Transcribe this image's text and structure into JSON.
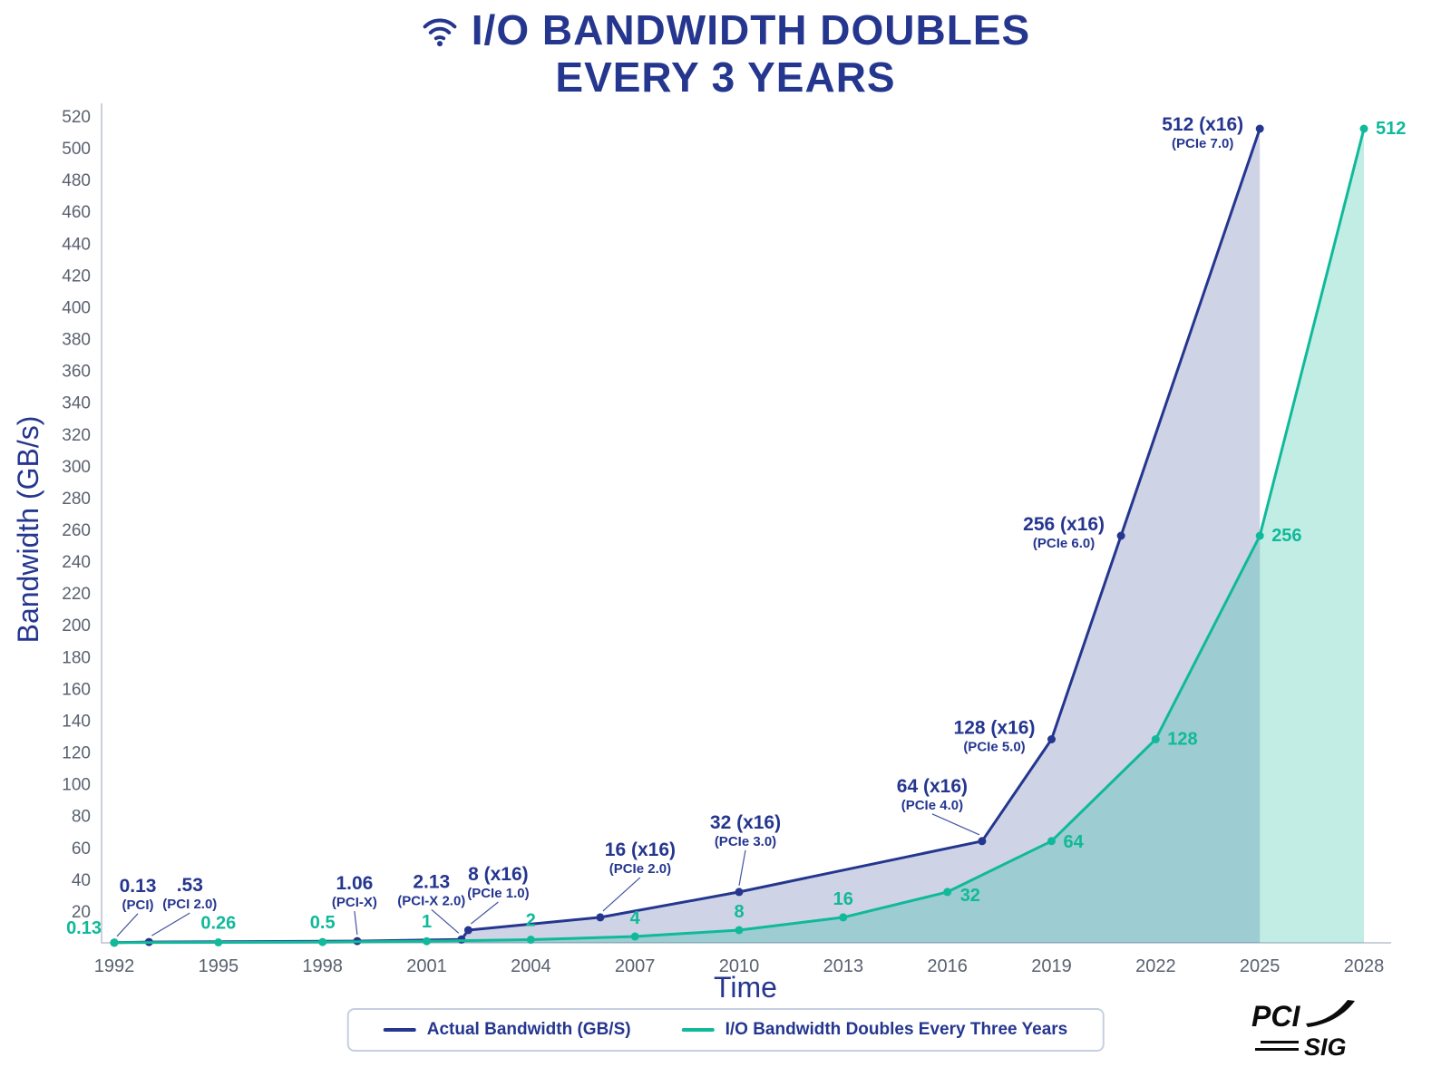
{
  "theme": {
    "navy": "#25368f",
    "teal": "#10b99a",
    "axis_line": "#cbd0da",
    "tick_text": "#5a6170",
    "background": "#ffffff",
    "navy_fill_opacity": 0.22,
    "teal_fill_opacity": 0.26
  },
  "title": {
    "line1": "I/O BANDWIDTH DOUBLES",
    "line2": "EVERY 3 YEARS"
  },
  "chart_data": {
    "type": "line",
    "title": "I/O BANDWIDTH DOUBLES EVERY 3 YEARS",
    "xlabel": "Time",
    "ylabel": "Bandwidth (GB/s)",
    "xlim": [
      1992,
      2028
    ],
    "ylim": [
      0,
      520
    ],
    "y_tick_step": 20,
    "x_ticks": [
      "1992",
      "1995",
      "1998",
      "2001",
      "2004",
      "2007",
      "2010",
      "2013",
      "2016",
      "2019",
      "2022",
      "2025",
      "2028"
    ],
    "grid": false,
    "legend_position": "bottom-center",
    "series": [
      {
        "name": "Actual Bandwidth (GB/S)",
        "color": "#25368f",
        "area": true,
        "points": [
          {
            "x": 1992,
            "y": 0.13,
            "label": "0.13",
            "sublabel": "(PCI)",
            "dx": 26,
            "dy": -56,
            "leader": true
          },
          {
            "x": 1993,
            "y": 0.53,
            "label": ".53",
            "sublabel": "(PCI 2.0)",
            "dx": 45,
            "dy": -56,
            "leader": true
          },
          {
            "x": 1999,
            "y": 1.06,
            "label": "1.06",
            "sublabel": "(PCI-X)",
            "dx": -3,
            "dy": -57,
            "leader": true
          },
          {
            "x": 2002,
            "y": 2.13,
            "label": "2.13",
            "sublabel": "(PCI-X 2.0)",
            "dx": -33,
            "dy": -57,
            "leader": true
          },
          {
            "x": 2002.2,
            "y": 8,
            "label": "8 (x16)",
            "sublabel": "(PCIe 1.0)",
            "dx": 33,
            "dy": -55,
            "leader": true
          },
          {
            "x": 2006,
            "y": 16,
            "label": "16 (x16)",
            "sublabel": "(PCIe 2.0)",
            "dx": 44,
            "dy": -68,
            "leader": true
          },
          {
            "x": 2010,
            "y": 32,
            "label": "32 (x16)",
            "sublabel": "(PCIe 3.0)",
            "dx": 7,
            "dy": -70,
            "leader": true
          },
          {
            "x": 2017,
            "y": 64,
            "label": "64 (x16)",
            "sublabel": "(PCIe 4.0)",
            "dx": -55,
            "dy": -54,
            "leader": true
          },
          {
            "x": 2019,
            "y": 128,
            "label": "128 (x16)",
            "sublabel": "(PCIe 5.0)",
            "dx": -63,
            "dy": -6,
            "leader": false
          },
          {
            "x": 2021,
            "y": 256,
            "label": "256 (x16)",
            "sublabel": "(PCIe 6.0)",
            "dx": -63,
            "dy": -6,
            "leader": false
          },
          {
            "x": 2025,
            "y": 512,
            "label": "512 (x16)",
            "sublabel": "(PCIe 7.0)",
            "dx": -63,
            "dy": 2,
            "leader": false
          }
        ]
      },
      {
        "name": "I/O Bandwidth Doubles Every Three Years",
        "color": "#10b99a",
        "area": true,
        "points": [
          {
            "x": 1992,
            "y": 0.13,
            "label": "0.13",
            "dx": -14,
            "dy": -10,
            "anchor": "end"
          },
          {
            "x": 1995,
            "y": 0.26,
            "label": "0.26",
            "dx": 0,
            "dy": -15,
            "anchor": "middle"
          },
          {
            "x": 1998,
            "y": 0.5,
            "label": "0.5",
            "dx": 0,
            "dy": -15,
            "anchor": "middle"
          },
          {
            "x": 2001,
            "y": 1,
            "label": "1",
            "dx": 0,
            "dy": -15,
            "anchor": "middle"
          },
          {
            "x": 2004,
            "y": 2,
            "label": "2",
            "dx": 0,
            "dy": -15,
            "anchor": "middle"
          },
          {
            "x": 2007,
            "y": 4,
            "label": "4",
            "dx": 0,
            "dy": -14,
            "anchor": "middle"
          },
          {
            "x": 2010,
            "y": 8,
            "label": "8",
            "dx": 0,
            "dy": -14,
            "anchor": "middle"
          },
          {
            "x": 2013,
            "y": 16,
            "label": "16",
            "dx": 0,
            "dy": -14,
            "anchor": "middle"
          },
          {
            "x": 2016,
            "y": 32,
            "label": "32",
            "dx": 14,
            "dy": 10,
            "anchor": "start"
          },
          {
            "x": 2019,
            "y": 64,
            "label": "64",
            "dx": 13,
            "dy": 7,
            "anchor": "start"
          },
          {
            "x": 2022,
            "y": 128,
            "label": "128",
            "dx": 13,
            "dy": 6,
            "anchor": "start"
          },
          {
            "x": 2025,
            "y": 256,
            "label": "256",
            "dx": 13,
            "dy": 6,
            "anchor": "start"
          },
          {
            "x": 2028,
            "y": 512,
            "label": "512",
            "dx": 13,
            "dy": 6,
            "anchor": "start"
          }
        ]
      }
    ]
  },
  "legend": {
    "items": [
      {
        "label": "Actual Bandwidth (GB/S)",
        "color": "#25368f"
      },
      {
        "label": "I/O Bandwidth Doubles Every Three Years",
        "color": "#10b99a"
      }
    ]
  },
  "logo": {
    "line1": "PCI",
    "line2": "SIG"
  }
}
